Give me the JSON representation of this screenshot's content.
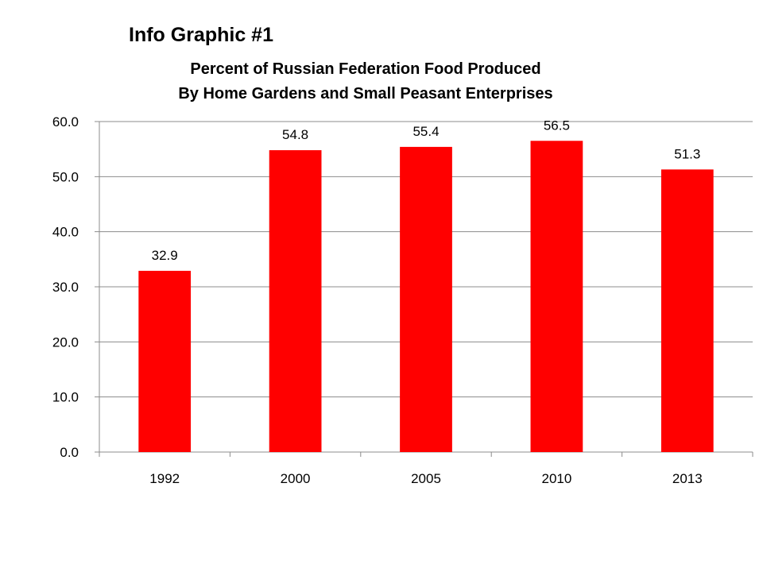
{
  "heading": "Info Graphic #1",
  "chart_data": {
    "type": "bar",
    "title_lines": [
      "Percent of Russian Federation Food Produced",
      "By Home Gardens and Small Peasant Enterprises"
    ],
    "categories": [
      "1992",
      "2000",
      "2005",
      "2010",
      "2013"
    ],
    "values": [
      32.9,
      54.8,
      55.4,
      56.5,
      51.3
    ],
    "value_labels": [
      "32.9",
      "54.8",
      "55.4",
      "56.5",
      "51.3"
    ],
    "yticks": [
      "0.0",
      "10.0",
      "20.0",
      "30.0",
      "40.0",
      "50.0",
      "60.0"
    ],
    "ylim": [
      0,
      60
    ],
    "xlabel": "",
    "ylabel": "",
    "grid": true,
    "legend": "none",
    "bar_color": "#ff0000"
  }
}
